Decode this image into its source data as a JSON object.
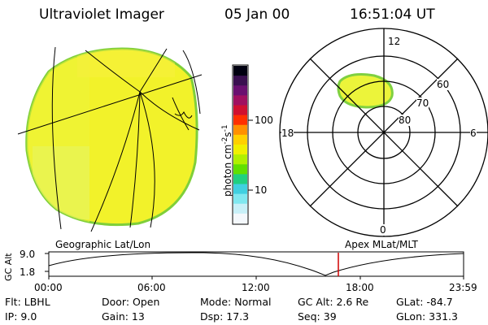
{
  "header": {
    "instrument": "Ultraviolet Imager",
    "date": "05 Jan 00",
    "time": "16:51:04 UT"
  },
  "colorbar": {
    "label_main": "photon cm",
    "label_exp1": "-2",
    "label_mid": "s",
    "label_exp2": "-1",
    "tick_100": "100",
    "tick_10": "10",
    "colors": [
      "#000010",
      "#3a1050",
      "#6a1070",
      "#a01060",
      "#d01030",
      "#ff3000",
      "#ff9000",
      "#ffd000",
      "#f0f000",
      "#b0f000",
      "#60e000",
      "#20d080",
      "#40d0e0",
      "#80e8f0",
      "#c8f0f8",
      "#f4f8fc"
    ]
  },
  "polar_plot": {
    "mlt_labels": {
      "top": "12",
      "left": "18",
      "right": "6",
      "bottom": "0"
    },
    "lat_labels": {
      "lat60": "60",
      "lat70": "70",
      "lat80": "80"
    }
  },
  "timeline": {
    "left_label": "Geographic Lat/Lon",
    "right_label": "Apex MLat/MLT",
    "axis_title": "GC Alt",
    "y_max": "9.0",
    "y_min": "1.8",
    "x_ticks": [
      "00:00",
      "06:00",
      "12:00",
      "18:00",
      "23:59"
    ],
    "current_time_marker_color": "#d00000"
  },
  "status": {
    "flt": "Flt: LBHL",
    "ip": "IP: 9.0",
    "door": "Door: Open",
    "gain": "Gain: 13",
    "mode": "Mode: Normal",
    "dsp": "Dsp: 17.3",
    "gc_alt": "GC Alt: 2.6 Re",
    "seq": "Seq: 39",
    "glat": "GLat: -84.7",
    "glon": "GLon: 331.3"
  }
}
